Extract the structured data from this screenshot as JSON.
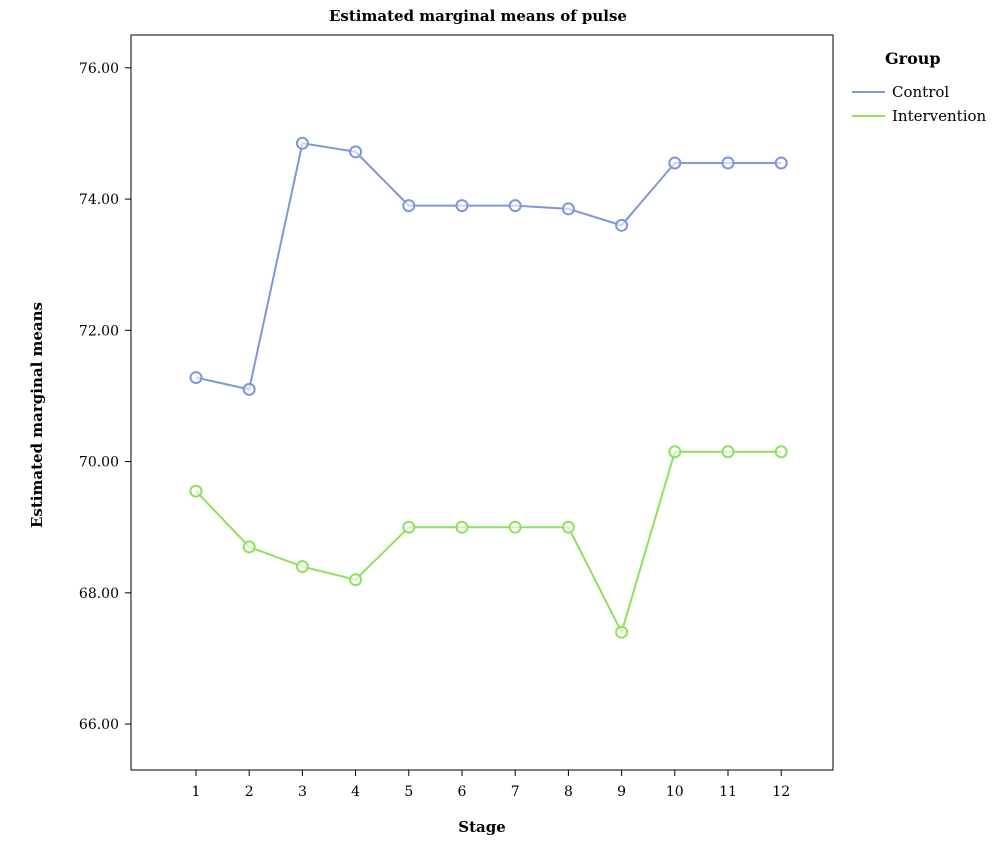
{
  "chart_data": {
    "type": "line",
    "title": "Estimated marginal means of pulse",
    "xlabel": "Stage",
    "ylabel": "Estimated marginal means",
    "categories": [
      "1",
      "2",
      "3",
      "4",
      "5",
      "6",
      "7",
      "8",
      "9",
      "10",
      "11",
      "12"
    ],
    "yticks": [
      "66.00",
      "68.00",
      "70.00",
      "72.00",
      "74.00",
      "76.00"
    ],
    "ylim": [
      65.3,
      76.5
    ],
    "grid": false,
    "legend": {
      "title": "Group",
      "position": "right"
    },
    "series": [
      {
        "name": "Control",
        "color": "#7f96d9",
        "values": [
          71.28,
          71.1,
          74.85,
          74.72,
          73.9,
          73.9,
          73.9,
          73.85,
          73.6,
          74.55,
          74.55,
          74.55
        ]
      },
      {
        "name": "Intervention",
        "color": "#8fe05f",
        "values": [
          69.55,
          68.7,
          68.4,
          68.2,
          69.0,
          69.0,
          69.0,
          69.0,
          67.4,
          70.15,
          70.15,
          70.15
        ]
      }
    ]
  }
}
